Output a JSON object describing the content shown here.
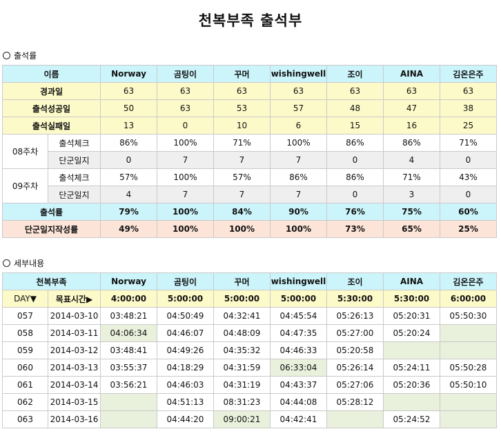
{
  "title": "천복부족 출석부",
  "section1": "출석률",
  "section2": "세부내용",
  "members": [
    "Norway",
    "곰팅이",
    "꾸머",
    "wishingwell",
    "조이",
    "AINA",
    "김온은주"
  ],
  "summary": {
    "header_label": "이름",
    "elapsed_label": "경과일",
    "elapsed": [
      "63",
      "63",
      "63",
      "63",
      "63",
      "63",
      "63"
    ],
    "success_label": "출석성공일",
    "success": [
      "50",
      "63",
      "53",
      "57",
      "48",
      "47",
      "38"
    ],
    "fail_label": "출석실패일",
    "fail": [
      "13",
      "0",
      "10",
      "6",
      "15",
      "16",
      "25"
    ],
    "weeks": [
      {
        "label": "08주차",
        "check_label": "출석체크",
        "check": [
          "86%",
          "100%",
          "71%",
          "100%",
          "86%",
          "86%",
          "71%"
        ],
        "diary_label": "단군일지",
        "diary": [
          "0",
          "7",
          "7",
          "7",
          "0",
          "4",
          "0"
        ]
      },
      {
        "label": "09주차",
        "check_label": "출석체크",
        "check": [
          "57%",
          "100%",
          "57%",
          "86%",
          "86%",
          "71%",
          "43%"
        ],
        "diary_label": "단군일지",
        "diary": [
          "4",
          "7",
          "7",
          "7",
          "0",
          "3",
          "0"
        ]
      }
    ],
    "rate_label": "출석률",
    "rate": [
      "79%",
      "100%",
      "84%",
      "90%",
      "76%",
      "75%",
      "60%"
    ],
    "diary_rate_label": "단군일지작성률",
    "diary_rate": [
      "49%",
      "100%",
      "100%",
      "100%",
      "73%",
      "65%",
      "25%"
    ]
  },
  "detail": {
    "header_label": "천복부족",
    "day_label": "DAY▼",
    "target_label": "목표시간▶",
    "targets": [
      "4:00:00",
      "5:00:00",
      "5:00:00",
      "5:00:00",
      "5:30:00",
      "5:30:00",
      "6:00:00"
    ],
    "rows": [
      {
        "day": "057",
        "date": "2014-03-10",
        "times": [
          "03:48:21",
          "04:50:49",
          "04:32:41",
          "04:45:54",
          "05:26:13",
          "05:20:31",
          "05:50:30"
        ],
        "green": []
      },
      {
        "day": "058",
        "date": "2014-03-11",
        "times": [
          "04:06:34",
          "04:46:07",
          "04:48:09",
          "04:47:35",
          "05:27:00",
          "05:20:24",
          ""
        ],
        "green": [
          0,
          6
        ]
      },
      {
        "day": "059",
        "date": "2014-03-12",
        "times": [
          "03:48:41",
          "04:49:26",
          "04:35:32",
          "04:46:33",
          "05:20:58",
          "",
          ""
        ],
        "green": [
          5,
          6
        ]
      },
      {
        "day": "060",
        "date": "2014-03-13",
        "times": [
          "03:55:37",
          "04:18:29",
          "04:31:59",
          "06:33:04",
          "05:26:14",
          "05:24:11",
          "05:50:28"
        ],
        "green": [
          3
        ]
      },
      {
        "day": "061",
        "date": "2014-03-14",
        "times": [
          "03:56:21",
          "04:46:03",
          "04:31:19",
          "04:43:37",
          "05:27:06",
          "05:20:36",
          "05:50:10"
        ],
        "green": []
      },
      {
        "day": "062",
        "date": "2014-03-15",
        "times": [
          "",
          "04:51:13",
          "08:31:23",
          "04:44:08",
          "05:28:12",
          "",
          ""
        ],
        "green": [
          0,
          5,
          6
        ]
      },
      {
        "day": "063",
        "date": "2014-03-16",
        "times": [
          "",
          "04:44:20",
          "09:00:21",
          "04:42:41",
          "",
          "05:24:52",
          ""
        ],
        "green": [
          0,
          2,
          4,
          6
        ]
      }
    ]
  }
}
